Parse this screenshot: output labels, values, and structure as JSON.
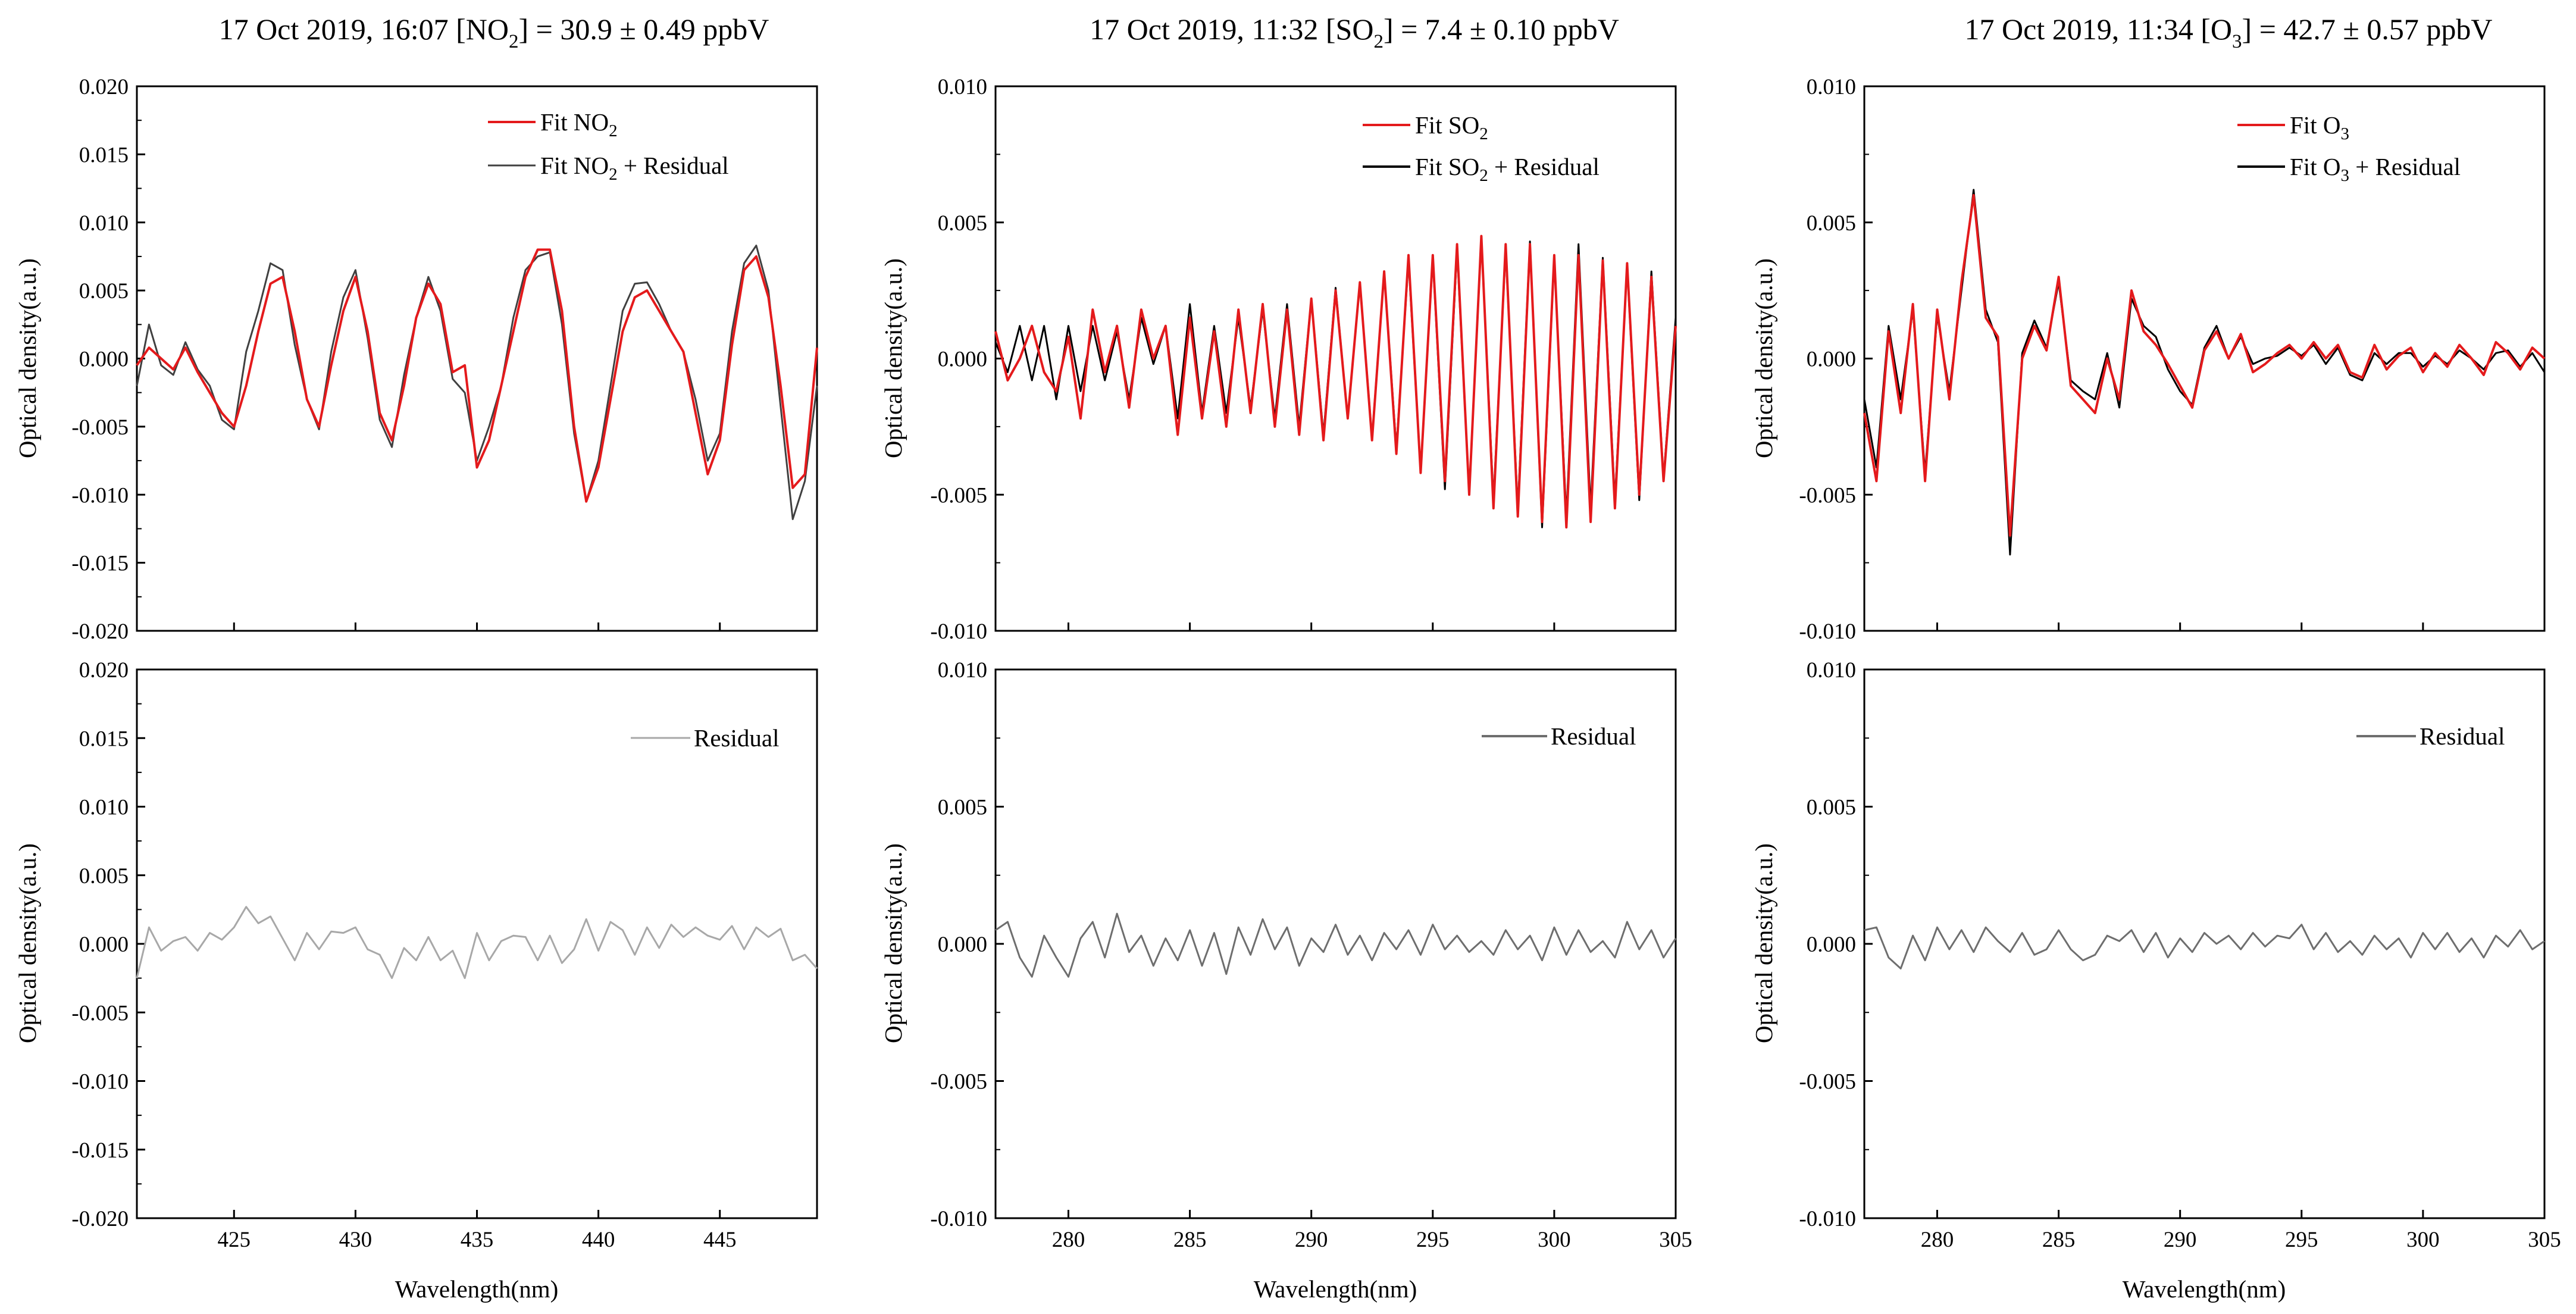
{
  "colors": {
    "fit": "#e41a1c",
    "meas_no2": "#404040",
    "meas": "#000000",
    "residual_no2": "#a8a8a8",
    "residual": "#6e6e6e",
    "axis": "#000000"
  },
  "panels": [
    {
      "title_prefix": "17 Oct 2019, 16:07    [NO",
      "title_sub": "2",
      "title_suffix": "] = 30.9 ± 0.49 ppbV",
      "legend_fit_a": "Fit NO",
      "legend_fit_sub": "2",
      "legend_fit_b": "",
      "legend_meas_a": "Fit NO",
      "legend_meas_sub": "2",
      "legend_meas_b": " + Residual",
      "legend_residual": "Residual",
      "ylabel": "Optical density(a.u.)",
      "xlabel": "Wavelength(nm)",
      "top_yticks": [
        "0.020",
        "0.015",
        "0.010",
        "0.005",
        "0.000",
        "-0.005",
        "-0.010",
        "-0.015",
        "-0.020"
      ],
      "bottom_yticks": [
        "0.020",
        "0.015",
        "0.010",
        "0.005",
        "0.000",
        "-0.005",
        "-0.010",
        "-0.015",
        "-0.020"
      ],
      "xticks": [
        "425",
        "430",
        "435",
        "440",
        "445"
      ]
    },
    {
      "title_prefix": "17 Oct 2019, 11:32    [SO",
      "title_sub": "2",
      "title_suffix": "] = 7.4 ± 0.10 ppbV",
      "legend_fit_a": "Fit SO",
      "legend_fit_sub": "2",
      "legend_fit_b": "",
      "legend_meas_a": "Fit SO",
      "legend_meas_sub": "2",
      "legend_meas_b": " + Residual",
      "legend_residual": "Residual",
      "ylabel": "Optical density(a.u.)",
      "xlabel": "Wavelength(nm)",
      "top_yticks": [
        "0.010",
        "0.005",
        "0.000",
        "-0.005",
        "-0.010"
      ],
      "bottom_yticks": [
        "0.010",
        "0.005",
        "0.000",
        "-0.005",
        "-0.010"
      ],
      "xticks": [
        "280",
        "285",
        "290",
        "295",
        "300",
        "305"
      ]
    },
    {
      "title_prefix": "17 Oct 2019, 11:34    [O",
      "title_sub": "3",
      "title_suffix": "] = 42.7 ± 0.57 ppbV",
      "legend_fit_a": "Fit O",
      "legend_fit_sub": "3",
      "legend_fit_b": "",
      "legend_meas_a": "Fit O",
      "legend_meas_sub": "3",
      "legend_meas_b": " + Residual",
      "legend_residual": "Residual",
      "ylabel": "Optical density(a.u.)",
      "xlabel": "Wavelength(nm)",
      "top_yticks": [
        "0.010",
        "0.005",
        "0.000",
        "-0.005",
        "-0.010"
      ],
      "bottom_yticks": [
        "0.010",
        "0.005",
        "0.000",
        "-0.005",
        "-0.010"
      ],
      "xticks": [
        "280",
        "285",
        "290",
        "295",
        "300",
        "305"
      ]
    }
  ],
  "chart_data": [
    {
      "type": "line",
      "title": "17 Oct 2019, 16:07 [NO2] = 30.9 ± 0.49 ppbV",
      "xlabel": "Wavelength(nm)",
      "ylabel": "Optical density(a.u.)",
      "xlim": [
        421,
        449
      ],
      "ylim": [
        -0.02,
        0.02
      ],
      "ylim_residual": [
        -0.02,
        0.02
      ],
      "x_ticks": [
        425,
        430,
        435,
        440,
        445
      ],
      "x": [
        421,
        421.5,
        422,
        422.5,
        423,
        423.5,
        424,
        424.5,
        425,
        425.5,
        426,
        426.5,
        427,
        427.5,
        428,
        428.5,
        429,
        429.5,
        430,
        430.5,
        431,
        431.5,
        432,
        432.5,
        433,
        433.5,
        434,
        434.5,
        435,
        435.5,
        436,
        436.5,
        437,
        437.5,
        438,
        438.5,
        439,
        439.5,
        440,
        440.5,
        441,
        441.5,
        442,
        442.5,
        443,
        443.5,
        444,
        444.5,
        445,
        445.5,
        446,
        446.5,
        447,
        447.5,
        448,
        448.5,
        449
      ],
      "series": [
        {
          "name": "Fit NO2",
          "values": [
            -0.0005,
            0.0008,
            0.0,
            -0.0008,
            0.0008,
            -0.001,
            -0.0025,
            -0.004,
            -0.005,
            -0.002,
            0.002,
            0.0055,
            0.006,
            0.002,
            -0.003,
            -0.005,
            -0.0005,
            0.0035,
            0.006,
            0.002,
            -0.004,
            -0.006,
            -0.002,
            0.003,
            0.0055,
            0.004,
            -0.001,
            -0.0005,
            -0.008,
            -0.006,
            -0.002,
            0.002,
            0.006,
            0.008,
            0.008,
            0.0035,
            -0.005,
            -0.0105,
            -0.008,
            -0.003,
            0.002,
            0.0045,
            0.005,
            0.0035,
            0.002,
            0.0005,
            -0.004,
            -0.0085,
            -0.006,
            0.001,
            0.0065,
            0.0075,
            0.0045,
            -0.002,
            -0.0095,
            -0.0085,
            0.0008
          ]
        },
        {
          "name": "Fit NO2 + Residual",
          "values": [
            -0.002,
            0.0025,
            -0.0005,
            -0.0012,
            0.0012,
            -0.0008,
            -0.002,
            -0.0045,
            -0.0052,
            0.0005,
            0.0035,
            0.007,
            0.0065,
            0.001,
            -0.003,
            -0.0052,
            0.0005,
            0.0045,
            0.0065,
            0.0015,
            -0.0045,
            -0.0065,
            -0.0012,
            0.003,
            0.006,
            0.0035,
            -0.0015,
            -0.0025,
            -0.0075,
            -0.005,
            -0.002,
            0.003,
            0.0065,
            0.0075,
            0.0078,
            0.0025,
            -0.0055,
            -0.0105,
            -0.0075,
            -0.002,
            0.0035,
            0.0055,
            0.0056,
            0.004,
            0.002,
            0.0005,
            -0.003,
            -0.0075,
            -0.0055,
            0.002,
            0.007,
            0.0083,
            0.005,
            -0.0035,
            -0.0118,
            -0.009,
            -0.002
          ]
        },
        {
          "name": "Residual",
          "values": [
            -0.0025,
            0.0012,
            -0.0005,
            0.0002,
            0.0005,
            -0.0005,
            0.0008,
            0.0003,
            0.0012,
            0.0027,
            0.0015,
            0.002,
            0.0004,
            -0.0012,
            0.0008,
            -0.0004,
            0.0009,
            0.0008,
            0.0012,
            -0.0004,
            -0.0008,
            -0.0025,
            -0.0003,
            -0.0012,
            0.0005,
            -0.0012,
            -0.0005,
            -0.0025,
            0.0008,
            -0.0012,
            0.0002,
            0.0006,
            0.0005,
            -0.0012,
            0.0006,
            -0.0014,
            -0.0004,
            0.0018,
            -0.0005,
            0.0016,
            0.001,
            -0.0008,
            0.0012,
            -0.0003,
            0.0014,
            0.0005,
            0.0012,
            0.0006,
            0.0003,
            0.0013,
            -0.0004,
            0.0012,
            0.0005,
            0.0011,
            -0.0012,
            -0.0008,
            -0.0018
          ]
        }
      ]
    },
    {
      "type": "line",
      "title": "17 Oct 2019, 11:32 [SO2] = 7.4 ± 0.10 ppbV",
      "xlabel": "Wavelength(nm)",
      "ylabel": "Optical density(a.u.)",
      "xlim": [
        277,
        305
      ],
      "ylim": [
        -0.01,
        0.01
      ],
      "ylim_residual": [
        -0.01,
        0.01
      ],
      "x_ticks": [
        280,
        285,
        290,
        295,
        300,
        305
      ],
      "x": [
        277,
        277.5,
        278,
        278.5,
        279,
        279.5,
        280,
        280.5,
        281,
        281.5,
        282,
        282.5,
        283,
        283.5,
        284,
        284.5,
        285,
        285.5,
        286,
        286.5,
        287,
        287.5,
        288,
        288.5,
        289,
        289.5,
        290,
        290.5,
        291,
        291.5,
        292,
        292.5,
        293,
        293.5,
        294,
        294.5,
        295,
        295.5,
        296,
        296.5,
        297,
        297.5,
        298,
        298.5,
        299,
        299.5,
        300,
        300.5,
        301,
        301.5,
        302,
        302.5,
        303,
        303.5,
        304,
        304.5,
        305
      ],
      "series": [
        {
          "name": "Fit SO2",
          "values": [
            0.001,
            -0.0008,
            0.0,
            0.0012,
            -0.0005,
            -0.0012,
            0.0008,
            -0.0022,
            0.0018,
            -0.0005,
            0.0012,
            -0.0018,
            0.0018,
            0.0,
            0.0012,
            -0.0028,
            0.0015,
            -0.0022,
            0.001,
            -0.0025,
            0.0018,
            -0.002,
            0.002,
            -0.0025,
            0.0018,
            -0.0028,
            0.0022,
            -0.003,
            0.0025,
            -0.0022,
            0.0028,
            -0.003,
            0.0032,
            -0.0035,
            0.0038,
            -0.0042,
            0.0038,
            -0.0045,
            0.0042,
            -0.005,
            0.0045,
            -0.0055,
            0.0042,
            -0.0058,
            0.0042,
            -0.006,
            0.0038,
            -0.0062,
            0.0038,
            -0.006,
            0.0036,
            -0.0055,
            0.0035,
            -0.005,
            0.003,
            -0.0045,
            0.0012
          ]
        },
        {
          "name": "Fit SO2 + Residual",
          "values": [
            0.0006,
            -0.0005,
            0.0012,
            -0.0008,
            0.0012,
            -0.0015,
            0.0012,
            -0.0012,
            0.0012,
            -0.0008,
            0.001,
            -0.0015,
            0.0015,
            -0.0002,
            0.0012,
            -0.0022,
            0.002,
            -0.002,
            0.0012,
            -0.002,
            0.0015,
            -0.0018,
            0.0018,
            -0.0022,
            0.002,
            -0.0025,
            0.0022,
            -0.0028,
            0.0026,
            -0.0022,
            0.0028,
            -0.0029,
            0.0032,
            -0.0033,
            0.0036,
            -0.0042,
            0.0037,
            -0.0048,
            0.004,
            -0.005,
            0.0044,
            -0.0052,
            0.004,
            -0.0055,
            0.0043,
            -0.0062,
            0.0037,
            -0.0058,
            0.0042,
            -0.0055,
            0.0037,
            -0.0052,
            0.0034,
            -0.0052,
            0.0032,
            -0.0044,
            0.0015
          ]
        },
        {
          "name": "Residual",
          "values": [
            0.0005,
            0.0008,
            -0.0005,
            -0.0012,
            0.0003,
            -0.0005,
            -0.0012,
            0.0002,
            0.0008,
            -0.0005,
            0.0011,
            -0.0003,
            0.0003,
            -0.0008,
            0.0002,
            -0.0006,
            0.0005,
            -0.0008,
            0.0004,
            -0.0011,
            0.0006,
            -0.0004,
            0.0009,
            -0.0002,
            0.0006,
            -0.0008,
            0.0002,
            -0.0003,
            0.0007,
            -0.0004,
            0.0003,
            -0.0006,
            0.0004,
            -0.0002,
            0.0005,
            -0.0004,
            0.0007,
            -0.0002,
            0.0003,
            -0.0003,
            0.0001,
            -0.0004,
            0.0005,
            -0.0002,
            0.0003,
            -0.0006,
            0.0006,
            -0.0004,
            0.0005,
            -0.0003,
            0.0001,
            -0.0005,
            0.0008,
            -0.0002,
            0.0005,
            -0.0005,
            0.0002
          ]
        }
      ]
    },
    {
      "type": "line",
      "title": "17 Oct 2019, 11:34 [O3] = 42.7 ± 0.57 ppbV",
      "xlabel": "Wavelength(nm)",
      "ylabel": "Optical density(a.u.)",
      "xlim": [
        277,
        305
      ],
      "ylim": [
        -0.01,
        0.01
      ],
      "ylim_residual": [
        -0.01,
        0.01
      ],
      "x_ticks": [
        280,
        285,
        290,
        295,
        300,
        305
      ],
      "x": [
        277,
        277.5,
        278,
        278.5,
        279,
        279.5,
        280,
        280.5,
        281,
        281.5,
        282,
        282.5,
        283,
        283.5,
        284,
        284.5,
        285,
        285.5,
        286,
        286.5,
        287,
        287.5,
        288,
        288.5,
        289,
        289.5,
        290,
        290.5,
        291,
        291.5,
        292,
        292.5,
        293,
        293.5,
        294,
        294.5,
        295,
        295.5,
        296,
        296.5,
        297,
        297.5,
        298,
        298.5,
        299,
        299.5,
        300,
        300.5,
        301,
        301.5,
        302,
        302.5,
        303,
        303.5,
        304,
        304.5,
        305
      ],
      "series": [
        {
          "name": "Fit O3",
          "values": [
            -0.002,
            -0.0045,
            0.001,
            -0.002,
            0.002,
            -0.0045,
            0.0018,
            -0.0015,
            0.0028,
            0.006,
            0.0015,
            0.0008,
            -0.0065,
            0.0,
            0.0012,
            0.0003,
            0.003,
            -0.001,
            -0.0015,
            -0.002,
            0.0,
            -0.0015,
            0.0025,
            0.001,
            0.0005,
            -0.0002,
            -0.001,
            -0.0018,
            0.0003,
            0.001,
            0.0,
            0.0009,
            -0.0005,
            -0.0002,
            0.0002,
            0.0005,
            0.0,
            0.0006,
            0.0,
            0.0005,
            -0.0005,
            -0.0007,
            0.0005,
            -0.0004,
            0.0001,
            0.0004,
            -0.0005,
            0.0002,
            -0.0003,
            0.0005,
            0.0,
            -0.0006,
            0.0006,
            0.0002,
            -0.0004,
            0.0004,
            0.0
          ]
        },
        {
          "name": "Fit O3 + Residual",
          "values": [
            -0.0015,
            -0.004,
            0.0012,
            -0.0015,
            0.0018,
            -0.0042,
            0.0016,
            -0.0012,
            0.0025,
            0.0062,
            0.0018,
            0.0006,
            -0.0072,
            0.0002,
            0.0014,
            0.0004,
            0.0028,
            -0.0008,
            -0.0012,
            -0.0015,
            0.0002,
            -0.0018,
            0.0022,
            0.0012,
            0.0008,
            -0.0004,
            -0.0012,
            -0.0017,
            0.0004,
            0.0012,
            0.0,
            0.0008,
            -0.0002,
            0.0,
            0.0001,
            0.0004,
            0.0001,
            0.0005,
            -0.0002,
            0.0004,
            -0.0006,
            -0.0008,
            0.0002,
            -0.0002,
            0.0002,
            0.0002,
            -0.0003,
            0.0001,
            -0.0002,
            0.0003,
            0.0,
            -0.0004,
            0.0002,
            0.0003,
            -0.0003,
            0.0002,
            -0.0005
          ]
        },
        {
          "name": "Residual",
          "values": [
            0.0005,
            0.0006,
            -0.0005,
            -0.0009,
            0.0003,
            -0.0006,
            0.0006,
            -0.0002,
            0.0005,
            -0.0003,
            0.0006,
            0.0001,
            -0.0003,
            0.0004,
            -0.0004,
            -0.0002,
            0.0005,
            -0.0002,
            -0.0006,
            -0.0004,
            0.0003,
            0.0001,
            0.0005,
            -0.0003,
            0.0004,
            -0.0005,
            0.0002,
            -0.0003,
            0.0004,
            0.0,
            0.0003,
            -0.0002,
            0.0004,
            -0.0001,
            0.0003,
            0.0002,
            0.0007,
            -0.0002,
            0.0004,
            -0.0003,
            0.0001,
            -0.0004,
            0.0003,
            -0.0002,
            0.0002,
            -0.0005,
            0.0004,
            -0.0002,
            0.0004,
            -0.0003,
            0.0002,
            -0.0005,
            0.0003,
            -0.0001,
            0.0005,
            -0.0002,
            0.0001
          ]
        }
      ]
    }
  ]
}
